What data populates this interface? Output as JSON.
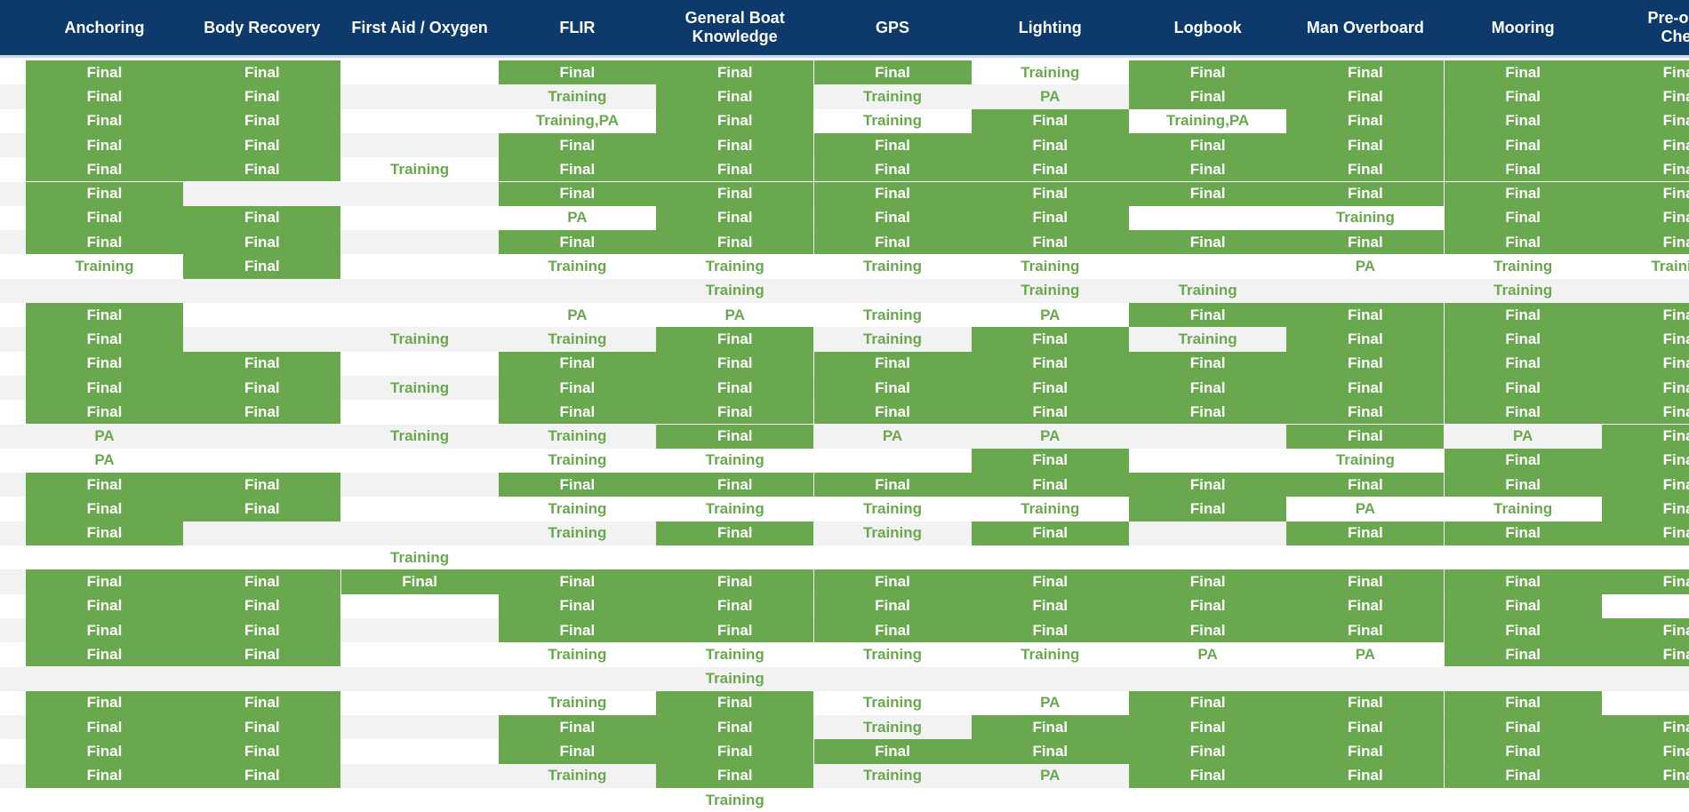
{
  "columns": [
    "Anchoring",
    "Body Recovery",
    "First Aid / Oxygen",
    "FLIR",
    "General Boat\nKnowledge",
    "GPS",
    "Lighting",
    "Logbook",
    "Man Overboard",
    "Mooring",
    "Pre-oper\nChec"
  ],
  "status_colors": {
    "final_bg": "#6aa84f",
    "final_text": "#ffffff",
    "other_text": "#6aa84f",
    "header_bg": "#0d3a6b"
  },
  "rows": [
    [
      "Final",
      "Final",
      "",
      "Final",
      "Final",
      "Final",
      "Training",
      "Final",
      "Final",
      "Final",
      "Final"
    ],
    [
      "Final",
      "Final",
      "",
      "Training",
      "Final",
      "Training",
      "PA",
      "Final",
      "Final",
      "Final",
      "Final"
    ],
    [
      "Final",
      "Final",
      "",
      "Training,PA",
      "Final",
      "Training",
      "Final",
      "Training,PA",
      "Final",
      "Final",
      "Final"
    ],
    [
      "Final",
      "Final",
      "",
      "Final",
      "Final",
      "Final",
      "Final",
      "Final",
      "Final",
      "Final",
      "Final"
    ],
    [
      "Final",
      "Final",
      "Training",
      "Final",
      "Final",
      "Final",
      "Final",
      "Final",
      "Final",
      "Final",
      "Final"
    ],
    [
      "Final",
      "",
      "",
      "Final",
      "Final",
      "Final",
      "Final",
      "Final",
      "Final",
      "Final",
      "Final"
    ],
    [
      "Final",
      "Final",
      "",
      "PA",
      "Final",
      "Final",
      "Final",
      "",
      "Training",
      "Final",
      "Final"
    ],
    [
      "Final",
      "Final",
      "",
      "Final",
      "Final",
      "Final",
      "Final",
      "Final",
      "Final",
      "Final",
      "Final"
    ],
    [
      "Training",
      "Final",
      "",
      "Training",
      "Training",
      "Training",
      "Training",
      "",
      "PA",
      "Training",
      "Training"
    ],
    [
      "",
      "",
      "",
      "",
      "Training",
      "",
      "Training",
      "Training",
      "",
      "Training",
      ""
    ],
    [
      "Final",
      "",
      "",
      "PA",
      "PA",
      "Training",
      "PA",
      "Final",
      "Final",
      "Final",
      "Final"
    ],
    [
      "Final",
      "",
      "Training",
      "Training",
      "Final",
      "Training",
      "Final",
      "Training",
      "Final",
      "Final",
      "Final"
    ],
    [
      "Final",
      "Final",
      "",
      "Final",
      "Final",
      "Final",
      "Final",
      "Final",
      "Final",
      "Final",
      "Final"
    ],
    [
      "Final",
      "Final",
      "Training",
      "Final",
      "Final",
      "Final",
      "Final",
      "Final",
      "Final",
      "Final",
      "Final"
    ],
    [
      "Final",
      "Final",
      "",
      "Final",
      "Final",
      "Final",
      "Final",
      "Final",
      "Final",
      "Final",
      "Final"
    ],
    [
      "PA",
      "",
      "Training",
      "Training",
      "Final",
      "PA",
      "PA",
      "",
      "Final",
      "PA",
      "Final"
    ],
    [
      "PA",
      "",
      "",
      "Training",
      "Training",
      "",
      "Final",
      "",
      "Training",
      "Final",
      "Final"
    ],
    [
      "Final",
      "Final",
      "",
      "Final",
      "Final",
      "Final",
      "Final",
      "Final",
      "Final",
      "Final",
      "Final"
    ],
    [
      "Final",
      "Final",
      "",
      "Training",
      "Training",
      "Training",
      "Training",
      "Final",
      "PA",
      "Training",
      "Final"
    ],
    [
      "Final",
      "",
      "",
      "Training",
      "Final",
      "Training",
      "Final",
      "",
      "Final",
      "Final",
      "Final"
    ],
    [
      "",
      "",
      "Training",
      "",
      "",
      "",
      "",
      "",
      "",
      "",
      ""
    ],
    [
      "Final",
      "Final",
      "Final",
      "Final",
      "Final",
      "Final",
      "Final",
      "Final",
      "Final",
      "Final",
      "Final"
    ],
    [
      "Final",
      "Final",
      "",
      "Final",
      "Final",
      "Final",
      "Final",
      "Final",
      "Final",
      "Final",
      ""
    ],
    [
      "Final",
      "Final",
      "",
      "Final",
      "Final",
      "Final",
      "Final",
      "Final",
      "Final",
      "Final",
      "Final"
    ],
    [
      "Final",
      "Final",
      "",
      "Training",
      "Training",
      "Training",
      "Training",
      "PA",
      "PA",
      "Final",
      "Final"
    ],
    [
      "",
      "",
      "",
      "",
      "Training",
      "",
      "",
      "",
      "",
      "",
      ""
    ],
    [
      "Final",
      "Final",
      "",
      "Training",
      "Final",
      "Training",
      "PA",
      "Final",
      "Final",
      "Final",
      ""
    ],
    [
      "Final",
      "Final",
      "",
      "Final",
      "Final",
      "Training",
      "Final",
      "Final",
      "Final",
      "Final",
      "Final"
    ],
    [
      "Final",
      "Final",
      "",
      "Final",
      "Final",
      "Final",
      "Final",
      "Final",
      "Final",
      "Final",
      "Final"
    ],
    [
      "Final",
      "Final",
      "",
      "Training",
      "Final",
      "Training",
      "PA",
      "Final",
      "Final",
      "Final",
      "Final"
    ],
    [
      "",
      "",
      "",
      "",
      "Training",
      "",
      "",
      "",
      "",
      "",
      ""
    ]
  ]
}
